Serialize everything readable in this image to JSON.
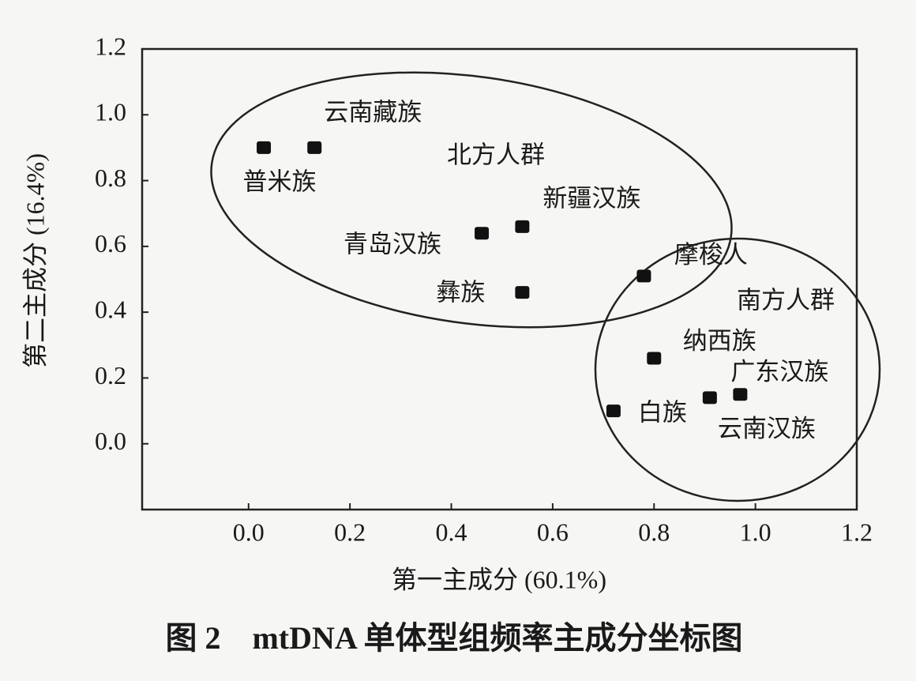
{
  "chart_data": {
    "type": "scatter",
    "title": "图 2　mtDNA 单体型组频率主成分坐标图",
    "x_label": "第一主成分 (60.1%)",
    "y_label": "第二主成分 (16.4%)",
    "x": [
      0.03,
      0.13,
      0.46,
      0.54,
      0.54,
      0.78,
      0.8,
      0.72,
      0.91,
      0.97
    ],
    "values": [
      0.9,
      0.9,
      0.64,
      0.66,
      0.46,
      0.51,
      0.26,
      0.1,
      0.14,
      0.15
    ],
    "labels": [
      "普米族",
      "云南藏族",
      "青岛汉族",
      "新疆汉族",
      "彝族",
      "摩梭人",
      "纳西族",
      "白族",
      "云南汉族",
      "广东汉族"
    ],
    "annotations": [
      "北方人群",
      "南方人群"
    ],
    "color": "#111111",
    "xlim": [
      -0.21,
      1.2
    ],
    "ylim": [
      -0.2,
      1.2
    ],
    "xticks": [
      {
        "value": 0,
        "label": "0.0"
      },
      0.2,
      0.4,
      0.6,
      0.8,
      {
        "value": 1,
        "label": "1.0"
      },
      1.2
    ],
    "yticks": [
      {
        "value": 0,
        "label": "0.0"
      },
      0.2,
      0.4,
      0.6,
      0.8,
      {
        "value": 1,
        "label": "1.0"
      },
      1.2
    ]
  }
}
